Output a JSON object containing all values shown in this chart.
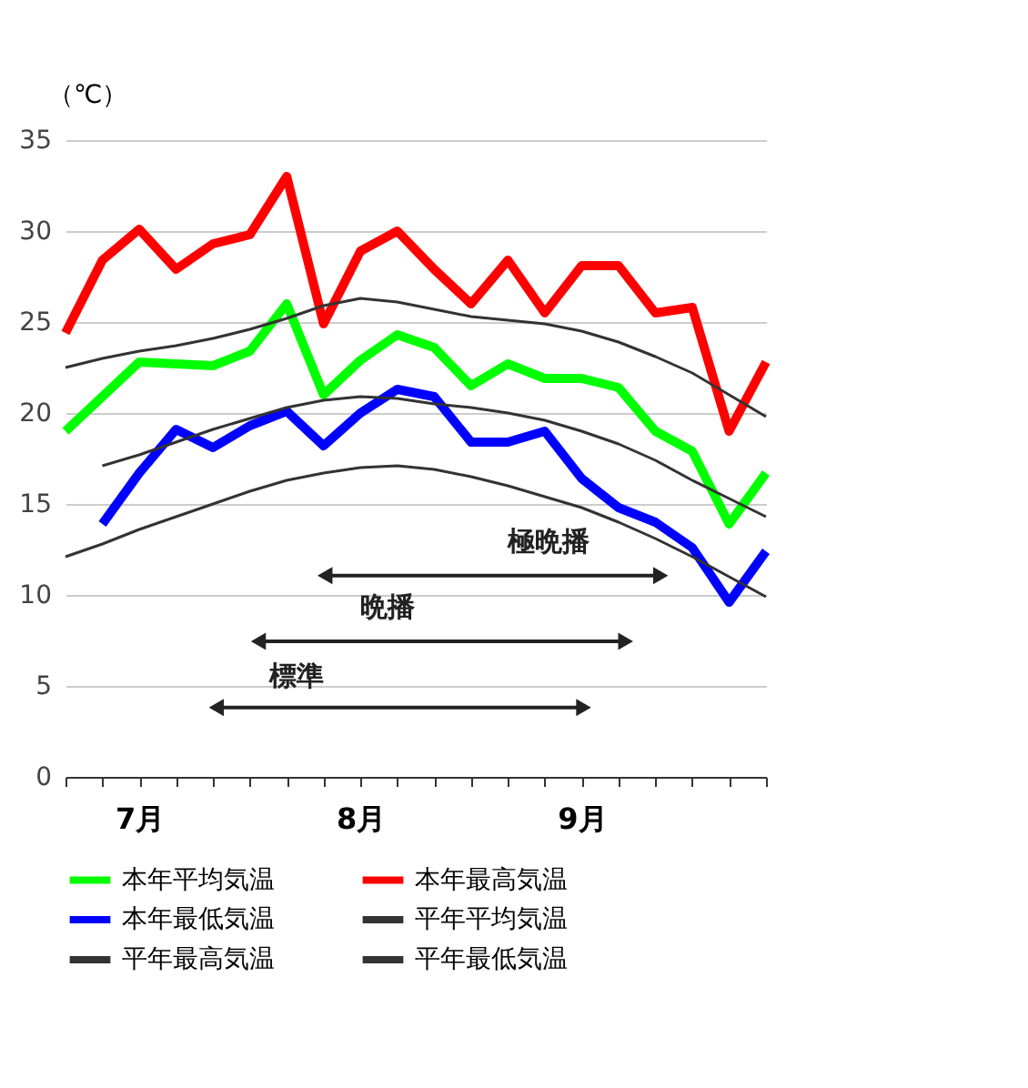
{
  "chart_data": {
    "type": "line",
    "ylabel": "（℃）",
    "categories": [
      null,
      null,
      "7月",
      null,
      null,
      null,
      null,
      null,
      "8月",
      null,
      null,
      null,
      null,
      null,
      "9月",
      null,
      null,
      null,
      null,
      null
    ],
    "series": [
      {
        "name": "本年平均気温",
        "color": "#00ff00",
        "values": [
          19.0,
          20.9,
          22.8,
          22.7,
          22.6,
          23.4,
          26.0,
          21.0,
          22.9,
          24.3,
          23.6,
          21.5,
          22.7,
          21.9,
          21.9,
          21.4,
          19.0,
          17.9,
          13.9,
          16.7
        ]
      },
      {
        "name": "本年最高気温",
        "color": "#ff0000",
        "values": [
          24.4,
          28.4,
          30.1,
          27.9,
          29.3,
          29.8,
          33.0,
          24.9,
          28.9,
          30.0,
          27.9,
          26.0,
          28.4,
          25.5,
          28.1,
          28.1,
          25.5,
          25.8,
          19.0,
          22.8
        ]
      },
      {
        "name": "本年最低気温",
        "color": "#0000ff",
        "values": [
          null,
          13.9,
          16.7,
          19.1,
          18.1,
          19.3,
          20.1,
          18.2,
          20.0,
          21.3,
          20.9,
          18.4,
          18.4,
          19.0,
          16.4,
          14.8,
          14.0,
          12.6,
          9.6,
          12.4
        ]
      },
      {
        "name": "平年平均気温",
        "color": "#333333",
        "values": [
          null,
          17.1,
          17.7,
          18.4,
          19.1,
          19.7,
          20.3,
          20.7,
          20.9,
          20.8,
          20.5,
          20.3,
          20.0,
          19.6,
          19.0,
          18.3,
          17.4,
          16.3,
          15.3,
          14.3
        ]
      },
      {
        "name": "平年最高気温",
        "color": "#333333",
        "values": [
          22.5,
          23.0,
          23.4,
          23.7,
          24.1,
          24.6,
          25.2,
          25.9,
          26.3,
          26.1,
          25.7,
          25.3,
          25.1,
          24.9,
          24.5,
          23.9,
          23.1,
          22.2,
          21.0,
          19.8
        ]
      },
      {
        "name": "平年最低気温",
        "color": "#333333",
        "values": [
          12.1,
          12.8,
          13.6,
          14.3,
          15.0,
          15.7,
          16.3,
          16.7,
          17.0,
          17.1,
          16.9,
          16.5,
          16.0,
          15.4,
          14.8,
          14.0,
          13.1,
          12.1,
          11.0,
          9.9
        ]
      }
    ],
    "ylim": [
      0,
      35
    ],
    "yticks": [
      0,
      5,
      10,
      15,
      20,
      25,
      30,
      35
    ],
    "grid": "y",
    "legend": "bottom",
    "marker": "none",
    "line_style": "solid",
    "annotations": [
      "極晩播",
      "晩播",
      "標準"
    ]
  }
}
